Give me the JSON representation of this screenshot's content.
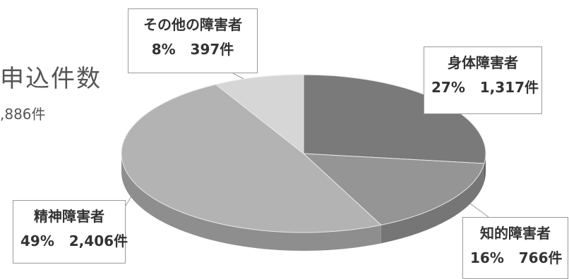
{
  "chart_data": {
    "type": "pie",
    "title": "申込件数",
    "subtitle": ",886件",
    "slices": [
      {
        "label": "身体障害者",
        "percent": "27%",
        "count": "1,317件",
        "value": 27,
        "color": "#7a7a7a",
        "side": "#5e5e5e"
      },
      {
        "label": "知的障害者",
        "percent": "16%",
        "count": "766件",
        "value": 16,
        "color": "#959595",
        "side": "#767676"
      },
      {
        "label": "精神障害者",
        "percent": "49%",
        "count": "2,406件",
        "value": 49,
        "color": "#b3b3b3",
        "side": "#8e8e8e"
      },
      {
        "label": "その他の障害者",
        "percent": "8%",
        "count": "397件",
        "value": 8,
        "color": "#d6d6d6",
        "side": "#aaaaaa"
      }
    ]
  }
}
